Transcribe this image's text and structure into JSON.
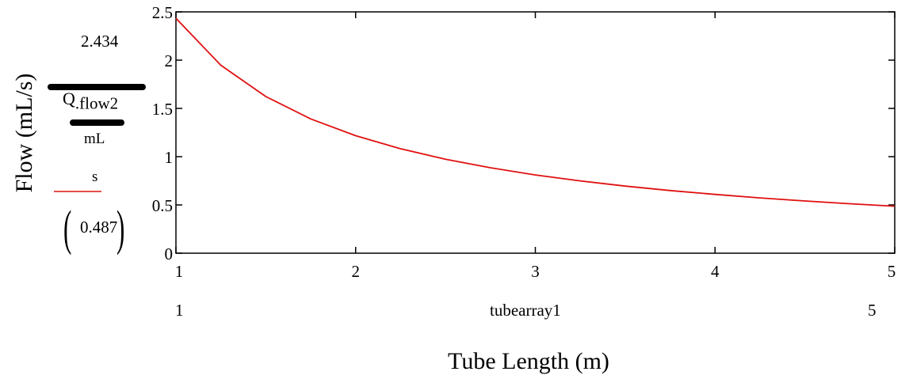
{
  "chart_data": {
    "type": "line",
    "title": "",
    "xlabel": "Tube Length (m)",
    "ylabel": "Flow (mL/s)",
    "xlim": [
      1,
      5
    ],
    "ylim": [
      0,
      2.5
    ],
    "x_ticks": [
      "1",
      "2",
      "3",
      "4",
      "5"
    ],
    "y_ticks": [
      "0",
      "0.5",
      "1",
      "1.5",
      "2",
      "2.5"
    ],
    "grid": false,
    "series": [
      {
        "color": "#e01010",
        "x": [
          1,
          1.25,
          1.5,
          1.75,
          2,
          2.25,
          2.5,
          2.75,
          3,
          3.25,
          3.5,
          3.75,
          4,
          4.25,
          4.5,
          4.75,
          5
        ],
        "y": [
          2.434,
          1.947,
          1.623,
          1.391,
          1.217,
          1.082,
          0.974,
          0.885,
          0.811,
          0.749,
          0.695,
          0.649,
          0.609,
          0.573,
          0.541,
          0.512,
          0.487
        ]
      }
    ]
  },
  "annotations": {
    "y_max_value": "2.434",
    "y_expr_var": "Q",
    "y_expr_subscript": ".flow2",
    "y_expr_unit_top": "mL",
    "y_expr_unit_bottom": "s",
    "y_min_value": "0.487",
    "x_min_value": "1",
    "x_expr": "tubearray1",
    "x_max_value": "5"
  }
}
